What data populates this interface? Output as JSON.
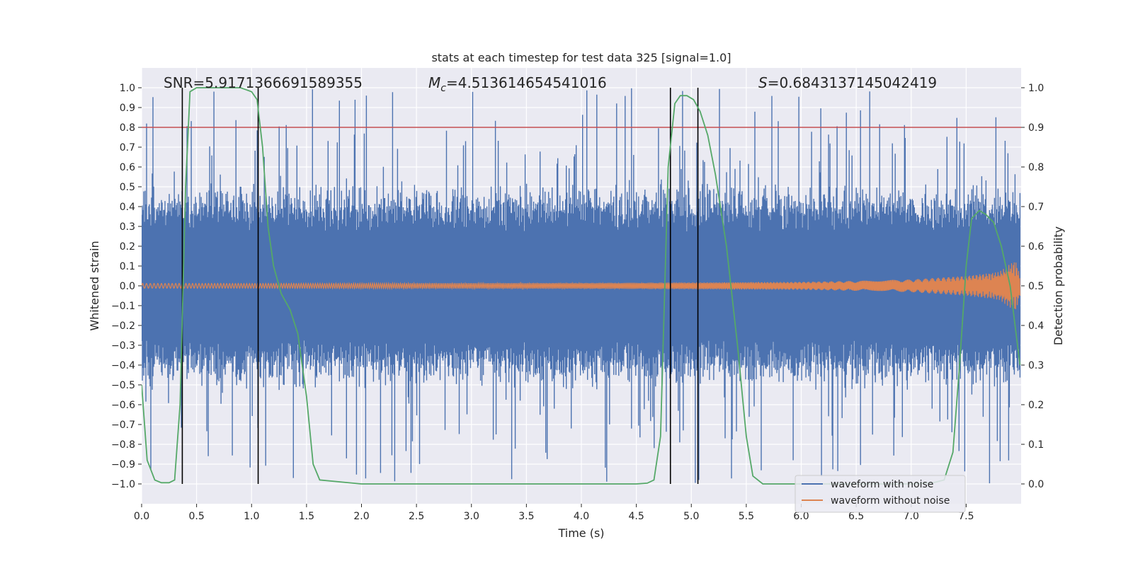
{
  "chart_data": {
    "type": "line",
    "title": "stats at each timestep for test data 325 [signal=1.0]",
    "xlabel": "Time (s)",
    "ylabel": "Whitened strain",
    "y2label": "Detection probability",
    "xlim": [
      0.0,
      8.0
    ],
    "ylim": [
      -1.1,
      1.1
    ],
    "y2lim": [
      -0.05,
      1.05
    ],
    "xticks": [
      0.0,
      0.5,
      1.0,
      1.5,
      2.0,
      2.5,
      3.0,
      3.5,
      4.0,
      4.5,
      5.0,
      5.5,
      6.0,
      6.5,
      7.0,
      7.5
    ],
    "yticks": [
      -1.0,
      -0.9,
      -0.8,
      -0.7,
      -0.6,
      -0.5,
      -0.4,
      -0.3,
      -0.2,
      -0.1,
      0.0,
      0.1,
      0.2,
      0.3,
      0.4,
      0.5,
      0.6,
      0.7,
      0.8,
      0.9,
      1.0
    ],
    "y2ticks": [
      0.0,
      0.1,
      0.2,
      0.3,
      0.4,
      0.5,
      0.6,
      0.7,
      0.8,
      0.9,
      1.0
    ],
    "annotations": {
      "snr": "SNR=5.9171366691589355",
      "mc_symbol": "M",
      "mc_sub": "c",
      "mc_value": "=4.513614654541016",
      "s_symbol": "S",
      "s_value": "=0.6843137145042419"
    },
    "threshold": {
      "value": 0.9,
      "axis": "right",
      "color": "#c44e52"
    },
    "vlines": [
      0.37,
      1.06,
      4.81,
      5.06
    ],
    "noisy_waveform": {
      "name": "waveform with noise",
      "color": "#4c72b0",
      "t_range": [
        0.0,
        7.99
      ],
      "typical_amplitude": 0.4,
      "peak_amplitude": 1.0
    },
    "clean_waveform": {
      "name": "waveform without noise",
      "color": "#dd8452",
      "t": [
        0.0,
        1.0,
        2.0,
        3.0,
        4.0,
        5.0,
        6.0,
        6.5,
        7.0,
        7.5,
        7.8,
        7.95,
        7.99
      ],
      "envelope": [
        0.012,
        0.012,
        0.013,
        0.014,
        0.015,
        0.017,
        0.02,
        0.025,
        0.032,
        0.05,
        0.07,
        0.13,
        0.05
      ]
    },
    "detection_probability": {
      "name": "detection probability",
      "color": "#55a868",
      "axis": "right",
      "t": [
        0.0,
        0.05,
        0.12,
        0.18,
        0.25,
        0.3,
        0.35,
        0.4,
        0.44,
        0.5,
        0.6,
        0.7,
        0.8,
        0.9,
        0.95,
        1.0,
        1.05,
        1.1,
        1.15,
        1.2,
        1.27,
        1.35,
        1.42,
        1.5,
        1.56,
        1.62,
        2.0,
        3.0,
        4.0,
        4.5,
        4.6,
        4.66,
        4.72,
        4.79,
        4.85,
        4.9,
        4.96,
        5.02,
        5.08,
        5.15,
        5.22,
        5.32,
        5.42,
        5.5,
        5.56,
        5.65,
        6.0,
        6.5,
        7.0,
        7.2,
        7.3,
        7.38,
        7.44,
        7.5,
        7.55,
        7.62,
        7.68,
        7.75,
        7.82,
        7.9,
        7.99
      ],
      "values": [
        0.25,
        0.06,
        0.01,
        0.003,
        0.003,
        0.01,
        0.2,
        0.75,
        0.99,
        1.0,
        1.0,
        1.0,
        1.0,
        1.0,
        0.995,
        0.99,
        0.97,
        0.85,
        0.65,
        0.55,
        0.48,
        0.44,
        0.38,
        0.22,
        0.05,
        0.01,
        0.0,
        0.0,
        0.0,
        0.0,
        0.002,
        0.01,
        0.12,
        0.8,
        0.96,
        0.98,
        0.98,
        0.97,
        0.94,
        0.88,
        0.78,
        0.6,
        0.35,
        0.12,
        0.02,
        0.0,
        0.0,
        0.0,
        0.0,
        0.003,
        0.01,
        0.08,
        0.3,
        0.55,
        0.67,
        0.69,
        0.68,
        0.66,
        0.6,
        0.5,
        0.3
      ]
    },
    "legend": {
      "position": "lower-right",
      "entries": [
        {
          "label": "waveform with noise",
          "color": "#4c72b0"
        },
        {
          "label": "waveform without noise",
          "color": "#dd8452"
        }
      ]
    }
  }
}
